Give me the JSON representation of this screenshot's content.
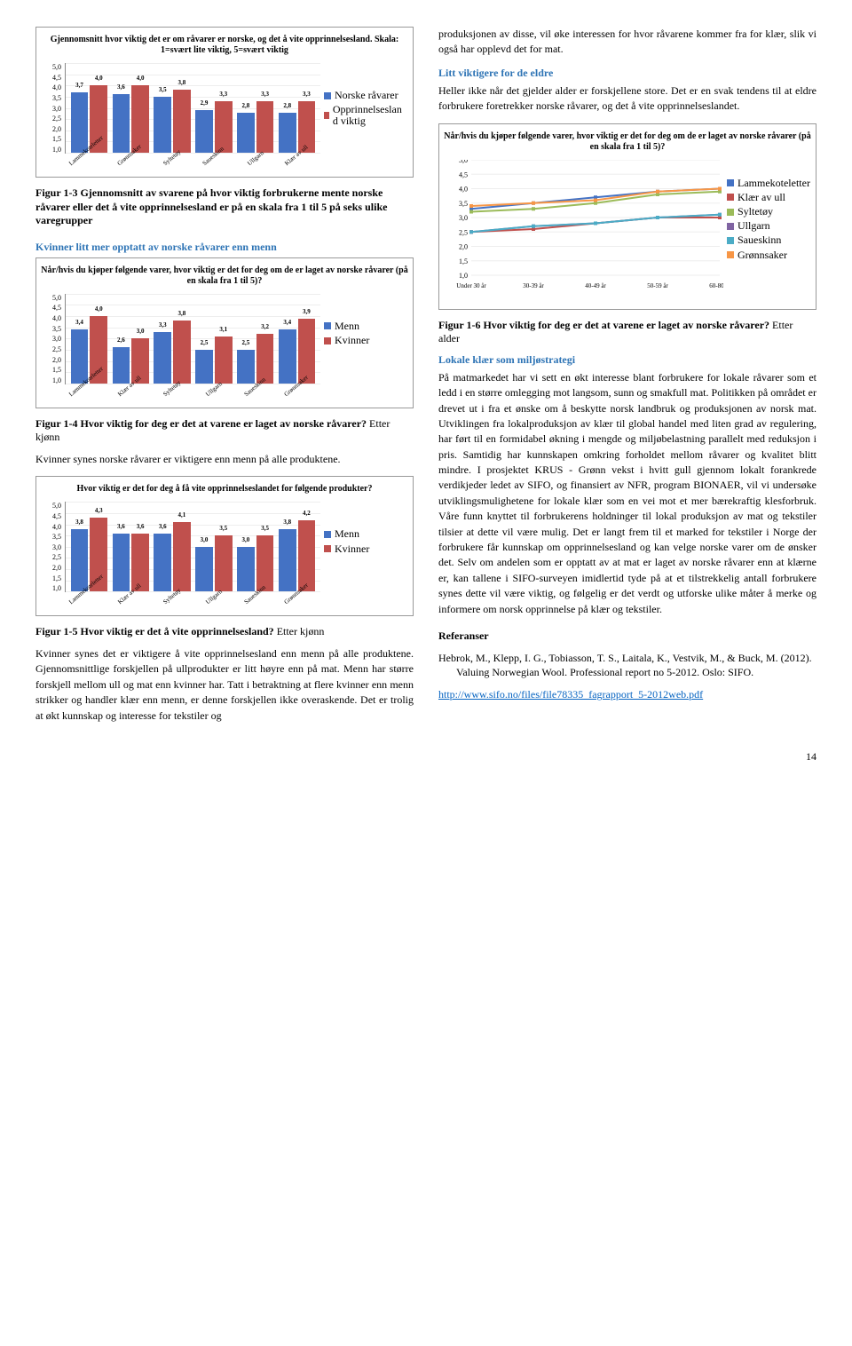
{
  "colors": {
    "blue": "#4472c4",
    "red": "#c0504d",
    "green": "#9bbb59",
    "purple": "#8064a2",
    "cyan": "#4bacc6",
    "orange": "#f79646",
    "grid": "#eeeeee",
    "axis": "#888888",
    "headBlue": "#2e74b5",
    "link": "#0563c1"
  },
  "chart1": {
    "title": "Gjennomsnitt hvor viktig det er om råvarer er norske, og det å vite opprinnelsesland.\nSkala: 1=svært lite viktig, 5=svært viktig",
    "ylim": [
      1.0,
      5.0
    ],
    "yticks": [
      "5,0",
      "4,5",
      "4,0",
      "3,5",
      "3,0",
      "2,5",
      "2,0",
      "1,5",
      "1,0"
    ],
    "cats": [
      "Lammekoteletter",
      "Grønnsaker",
      "Syltetøy",
      "Saueskinn",
      "Ullgarn",
      "Klær av ull"
    ],
    "s1": [
      3.7,
      4.0,
      3.6,
      4.0,
      3.5,
      3.8,
      2.9,
      3.3,
      2.8,
      3.3,
      2.8,
      3.3
    ],
    "legend": [
      "Norske råvarer",
      "Opprinnelseslan d viktig"
    ]
  },
  "caption1": "Figur 1-3 Gjennomsnitt av svarene på hvor viktig forbrukerne mente norske råvarer eller det å vite opprinnelsesland er på en skala fra 1 til 5 på seks ulike varegrupper",
  "head_kvinner": "Kvinner litt mer opptatt av norske råvarer enn menn",
  "chart2": {
    "title": "Når/hvis du kjøper følgende varer, hvor viktig er det for deg om de er laget av norske råvarer (på en skala fra 1 til 5)?",
    "ylim": [
      1.0,
      5.0
    ],
    "yticks": [
      "5,0",
      "4,5",
      "4,0",
      "3,5",
      "3,0",
      "2,5",
      "2,0",
      "1,5",
      "1,0"
    ],
    "cats": [
      "Lammekoteletter",
      "Klær av ull",
      "Syltetøy",
      "Ullgarn",
      "Saueskinn",
      "Grønnsaker"
    ],
    "s1": [
      3.4,
      4.0,
      2.6,
      3.0,
      3.3,
      3.8,
      2.5,
      3.1,
      2.5,
      3.2,
      3.4,
      3.9
    ],
    "legend": [
      "Menn",
      "Kvinner"
    ]
  },
  "caption2_a": "Figur 1-4 Hvor viktig for deg er det at varene er laget av norske råvarer?",
  "caption2_b": " Etter kjønn",
  "para2sub": "Kvinner synes norske råvarer er viktigere enn menn på alle produktene.",
  "chart3": {
    "title": "Hvor viktig er det for deg å få vite opprinnelseslandet for følgende produkter?",
    "ylim": [
      1.0,
      5.0
    ],
    "yticks": [
      "5,0",
      "4,5",
      "4,0",
      "3,5",
      "3,0",
      "2,5",
      "2,0",
      "1,5",
      "1,0"
    ],
    "cats": [
      "Lammekoteletter",
      "Klær av ull",
      "Syltetøy",
      "Ullgarn",
      "Saueskinn",
      "Grønnsaker"
    ],
    "s1": [
      3.8,
      4.3,
      3.6,
      3.6,
      3.6,
      4.1,
      3.0,
      3.5,
      3.0,
      3.5,
      3.8,
      4.2
    ],
    "legend": [
      "Menn",
      "Kvinner"
    ]
  },
  "caption3_a": "Figur 1-5 Hvor viktig er det å vite opprinnelsesland?",
  "caption3_b": " Etter kjønn",
  "para3": "Kvinner synes det er viktigere å vite opprinnelsesland enn menn på alle produktene. Gjennomsnittlige forskjellen på ullprodukter er litt høyre enn på mat. Menn har større forskjell mellom ull og mat enn kvinner har. Tatt i betraktning at flere kvinner enn menn strikker og handler klær enn menn, er denne forskjellen ikke overaskende. Det er trolig at økt kunnskap og interesse for tekstiler og",
  "para_r1": "produksjonen av disse, vil øke interessen for hvor råvarene kommer fra for klær, slik vi også har opplevd det for mat.",
  "head_eldre": "Litt viktigere for de eldre",
  "para_r2": "Heller ikke når det gjelder alder er forskjellene store. Det er en svak tendens til at eldre forbrukere foretrekker norske råvarer, og det å vite opprinnelseslandet.",
  "chart4": {
    "title": "Når/hvis du kjøper følgende varer, hvor viktig er det for deg om de er laget av norske råvarer (på en skala fra 1 til 5)?",
    "ylim": [
      1.0,
      5.0
    ],
    "yticks": [
      "5,0",
      "4,5",
      "4,0",
      "3,5",
      "3,0",
      "2,5",
      "2,0",
      "1,5",
      "1,0"
    ],
    "xcats": [
      "Under 30 år",
      "30-39 år",
      "40-49 år",
      "50-59 år",
      "60-80 år"
    ],
    "legend": [
      "Lammekoteletter",
      "Klær av ull",
      "Syltetøy",
      "Ullgarn",
      "Saueskinn",
      "Grønnsaker"
    ],
    "series": [
      [
        3.3,
        3.5,
        3.7,
        3.9,
        4.0
      ],
      [
        2.5,
        2.6,
        2.8,
        3.0,
        3.0
      ],
      [
        3.2,
        3.3,
        3.5,
        3.8,
        3.9
      ],
      [
        2.5,
        2.7,
        2.8,
        3.0,
        3.1
      ],
      [
        2.5,
        2.7,
        2.8,
        3.0,
        3.1
      ],
      [
        3.4,
        3.5,
        3.6,
        3.9,
        4.0
      ]
    ],
    "colors": [
      "#4472c4",
      "#c0504d",
      "#9bbb59",
      "#8064a2",
      "#4bacc6",
      "#f79646"
    ]
  },
  "caption4_a": "Figur 1-6 Hvor viktig for deg er det at varene er laget av norske råvarer?",
  "caption4_b": " Etter alder",
  "head_lokale": "Lokale klær som miljøstrategi",
  "para_r3": "På matmarkedet har vi sett en økt interesse blant forbrukere for lokale råvarer som et ledd i en større omlegging mot langsom, sunn og smakfull mat. Politikken på området er drevet ut i fra et ønske om å beskytte norsk landbruk og produksjonen av norsk mat. Utviklingen fra lokalproduksjon av klær til global handel med liten grad av regulering, har ført til en formidabel økning i mengde og miljøbelastning parallelt med reduksjon i pris. Samtidig har kunnskapen omkring forholdet mellom råvarer og kvalitet blitt mindre. I prosjektet KRUS - Grønn vekst i hvitt gull gjennom lokalt forankrede verdikjeder ledet av SIFO, og finansiert av NFR, program BIONAER, vil vi undersøke utviklingsmulighetene for lokale klær som en vei mot et mer bærekraftig klesforbruk. Våre funn knyttet til forbrukerens holdninger til lokal produksjon av mat og tekstiler tilsier at dette vil være mulig. Det er langt frem til et marked for tekstiler i Norge der forbrukere får kunnskap om opprinnelsesland og kan velge norske varer om de ønsker det. Selv om andelen som er opptatt av at mat er laget av norske råvarer enn at klærne er, kan tallene i SIFO-surveyen imidlertid tyde på at et tilstrekkelig antall forbrukere synes dette vil være viktig, og følgelig er det verdt og utforske ulike måter å merke og informere om norsk opprinnelse på klær og tekstiler.",
  "head_ref": "Referanser",
  "ref1": "Hebrok, M., Klepp, I. G., Tobiasson, T. S., Laitala, K., Vestvik, M., & Buck, M. (2012). Valuing Norwegian Wool. Professional report no 5-2012. Oslo: SIFO.",
  "ref_link": "http://www.sifo.no/files/file78335_fagrapport_5-2012web.pdf",
  "page": "14"
}
